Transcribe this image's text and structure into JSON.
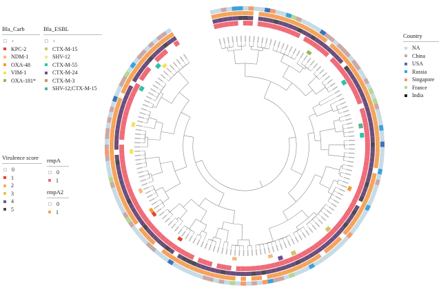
{
  "legends": {
    "carb": {
      "title": "Bla_Carb",
      "items": [
        {
          "label": "-",
          "color": "#ffffff"
        },
        {
          "label": "KPC-2",
          "color": "#e8412c"
        },
        {
          "label": "NDM-1",
          "color": "#f7b97b"
        },
        {
          "label": "OXA-48",
          "color": "#f59a2e"
        },
        {
          "label": "VIM-1",
          "color": "#f3e35b"
        },
        {
          "label": "OXA-181*",
          "color": "#8dbb4d"
        }
      ]
    },
    "esbl": {
      "title": "Bla_ESBL",
      "items": [
        {
          "label": "-",
          "color": "#ffffff"
        },
        {
          "label": "CTX-M-15",
          "color": "#d4c36a"
        },
        {
          "label": "SHV-12",
          "color": "#f4ea82"
        },
        {
          "label": "CTX-M-55",
          "color": "#2fc2a6"
        },
        {
          "label": "CTX-M-24",
          "color": "#6f4f93"
        },
        {
          "label": "CTX-M-3",
          "color": "#ba9b6b"
        },
        {
          "label": "SHV-12;CTX-M-15",
          "color": "#5cae8f"
        }
      ]
    },
    "virulence": {
      "title": "Virulence score",
      "items": [
        {
          "label": "0",
          "color": "#ffffff"
        },
        {
          "label": "1",
          "color": "#e8412c"
        },
        {
          "label": "2",
          "color": "#f7b04c"
        },
        {
          "label": "3",
          "color": "#f5c04a"
        },
        {
          "label": "4",
          "color": "#6b5a7a"
        },
        {
          "label": "5",
          "color": "#4e4a55"
        }
      ]
    },
    "rmpa": {
      "title": "rmpA",
      "items": [
        {
          "label": "0",
          "color": "#ffffff"
        },
        {
          "label": "1",
          "color": "#f06b78"
        }
      ]
    },
    "rmpa2": {
      "title": "rmpA2",
      "items": [
        {
          "label": "0",
          "color": "#ffffff"
        },
        {
          "label": "1",
          "color": "#f5a35a"
        }
      ]
    },
    "country": {
      "title": "Country",
      "items": [
        {
          "label": "NA",
          "color": "#c6dbe8"
        },
        {
          "label": "China",
          "color": "#c9a9a8"
        },
        {
          "label": "USA",
          "color": "#3d73b8"
        },
        {
          "label": "Russia",
          "color": "#3aa3de"
        },
        {
          "label": "Singapore",
          "color": "#f59a6e"
        },
        {
          "label": "France",
          "color": "#b3d88e"
        },
        {
          "label": "India",
          "color": "#222222"
        }
      ]
    }
  },
  "ring_colors": {
    "country_base": "#c6dbe8",
    "rmpa2_base": "#f5a35a",
    "virulence_base": "#6b4e7c",
    "rmpa_base": "#f06b78",
    "branch": "#888888"
  }
}
